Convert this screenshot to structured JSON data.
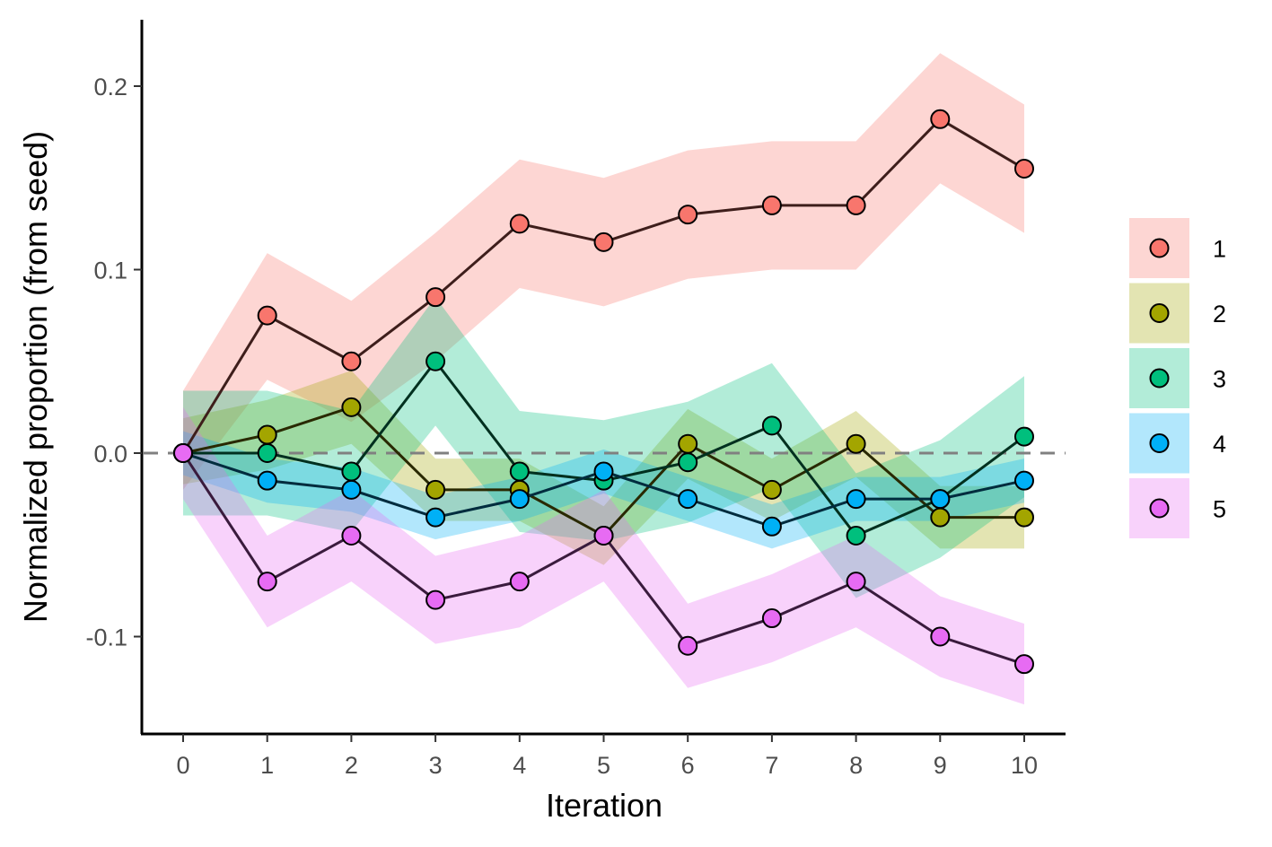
{
  "chart_data": {
    "type": "line",
    "xlabel": "Iteration",
    "ylabel": "Normalized proportion (from seed)",
    "x": [
      0,
      1,
      2,
      3,
      4,
      5,
      6,
      7,
      8,
      9,
      10
    ],
    "xlim": [
      -0.5,
      10.5
    ],
    "ylim": [
      -0.152,
      0.235
    ],
    "xticks": [
      "0",
      "1",
      "2",
      "3",
      "4",
      "5",
      "6",
      "7",
      "8",
      "9",
      "10"
    ],
    "yticks": [
      {
        "value": 0.2,
        "label": "0.2"
      },
      {
        "value": 0.1,
        "label": "0.1"
      },
      {
        "value": 0.0,
        "label": "0.0"
      },
      {
        "value": -0.1,
        "label": "-0.1"
      }
    ],
    "reference_line": {
      "y": 0,
      "style": "dashed",
      "color": "#808080"
    },
    "grid": false,
    "legend_position": "right",
    "series": [
      {
        "name": "1",
        "color": "#F8766D",
        "values": [
          0,
          0.075,
          0.05,
          0.085,
          0.125,
          0.115,
          0.13,
          0.135,
          0.135,
          0.182,
          0.155
        ],
        "lower": [
          -0.02,
          0.04,
          0.017,
          0.05,
          0.09,
          0.08,
          0.095,
          0.1,
          0.1,
          0.147,
          0.12
        ],
        "upper": [
          0.034,
          0.109,
          0.083,
          0.12,
          0.16,
          0.15,
          0.165,
          0.17,
          0.17,
          0.218,
          0.19
        ]
      },
      {
        "name": "2",
        "color": "#A3A500",
        "values": [
          0,
          0.01,
          0.025,
          -0.02,
          -0.02,
          -0.045,
          0.005,
          -0.02,
          0.005,
          -0.035,
          -0.035
        ],
        "lower": [
          -0.017,
          -0.009,
          0.005,
          -0.037,
          -0.037,
          -0.061,
          -0.014,
          -0.037,
          -0.013,
          -0.052,
          -0.052
        ],
        "upper": [
          0.019,
          0.029,
          0.045,
          -0.003,
          -0.003,
          -0.029,
          0.024,
          -0.003,
          0.023,
          -0.018,
          -0.018
        ]
      },
      {
        "name": "3",
        "color": "#00BF7D",
        "values": [
          0,
          0,
          -0.01,
          0.05,
          -0.01,
          -0.015,
          -0.005,
          0.015,
          -0.045,
          -0.025,
          0.009
        ],
        "lower": [
          -0.034,
          -0.034,
          -0.043,
          0.015,
          -0.043,
          -0.048,
          -0.038,
          -0.019,
          -0.079,
          -0.057,
          -0.024
        ],
        "upper": [
          0.034,
          0.034,
          0.023,
          0.085,
          0.023,
          0.018,
          0.028,
          0.049,
          -0.011,
          0.007,
          0.042
        ]
      },
      {
        "name": "4",
        "color": "#00B0F6",
        "values": [
          0,
          -0.015,
          -0.02,
          -0.035,
          -0.025,
          -0.01,
          -0.025,
          -0.04,
          -0.025,
          -0.025,
          -0.015
        ],
        "lower": [
          -0.012,
          -0.027,
          -0.032,
          -0.047,
          -0.037,
          -0.022,
          -0.037,
          -0.052,
          -0.037,
          -0.037,
          -0.027
        ],
        "upper": [
          0.012,
          -0.003,
          -0.008,
          -0.023,
          -0.013,
          0.002,
          -0.013,
          -0.028,
          -0.013,
          -0.013,
          -0.003
        ]
      },
      {
        "name": "5",
        "color": "#E76BF3",
        "values": [
          0,
          -0.07,
          -0.045,
          -0.08,
          -0.07,
          -0.045,
          -0.105,
          -0.09,
          -0.07,
          -0.1,
          -0.115
        ],
        "lower": [
          -0.025,
          -0.095,
          -0.07,
          -0.104,
          -0.095,
          -0.07,
          -0.128,
          -0.114,
          -0.095,
          -0.122,
          -0.137
        ],
        "upper": [
          0.025,
          -0.045,
          -0.02,
          -0.056,
          -0.045,
          -0.02,
          -0.082,
          -0.066,
          -0.045,
          -0.078,
          -0.093
        ]
      }
    ]
  }
}
